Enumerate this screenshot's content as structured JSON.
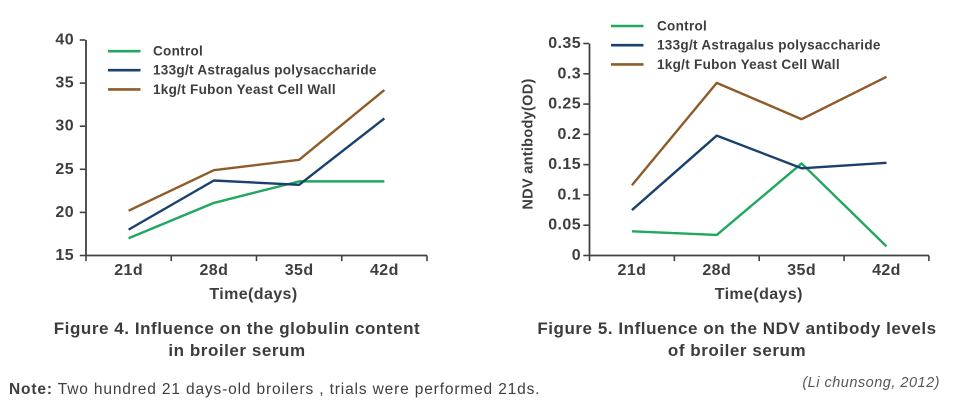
{
  "chart_data": [
    {
      "type": "line",
      "title": "",
      "categories": [
        "21d",
        "28d",
        "35d",
        "42d"
      ],
      "xlabel": "Time(days)",
      "ylabel": "",
      "ylim": [
        15,
        40
      ],
      "yticks": [
        15,
        20,
        25,
        30,
        35,
        40
      ],
      "ytick_labels": [
        "15",
        "20",
        "25",
        "30",
        "35",
        "40"
      ],
      "grid": false,
      "legend_position": "top-left-inside",
      "series": [
        {
          "name": "Control",
          "color": "#21a75f",
          "values": [
            17.0,
            21.1,
            23.6,
            23.6
          ]
        },
        {
          "name": "133g/t Astragalus polysaccharide",
          "color": "#1a416d",
          "values": [
            18.0,
            23.7,
            23.2,
            30.9
          ]
        },
        {
          "name": "1kg/t Fubon Yeast Cell Wall",
          "color": "#8d5c28",
          "values": [
            20.2,
            24.9,
            26.1,
            34.2
          ]
        }
      ],
      "caption": [
        "Figure 4. Influence on the globulin content",
        "in broiler serum"
      ]
    },
    {
      "type": "line",
      "title": "",
      "categories": [
        "21d",
        "28d",
        "35d",
        "42d"
      ],
      "xlabel": "Time(days)",
      "ylabel": "NDV antibody(OD)",
      "ylim": [
        0,
        0.35
      ],
      "yticks": [
        0,
        0.05,
        0.1,
        0.15,
        0.2,
        0.25,
        0.3,
        0.35
      ],
      "ytick_labels": [
        "0",
        "0.05",
        "0.1",
        "0.15",
        "0.2",
        "0.25",
        "0.3",
        "0.35"
      ],
      "grid": false,
      "legend_position": "top-left-inside",
      "series": [
        {
          "name": "Control",
          "color": "#21a75f",
          "values": [
            0.04,
            0.034,
            0.152,
            0.015
          ]
        },
        {
          "name": "133g/t Astragalus polysaccharide",
          "color": "#1a416d",
          "values": [
            0.075,
            0.198,
            0.144,
            0.153
          ]
        },
        {
          "name": "1kg/t Fubon Yeast Cell Wall",
          "color": "#8d5c28",
          "values": [
            0.116,
            0.285,
            0.225,
            0.295
          ]
        }
      ],
      "caption": [
        "Figure 5. Influence on the NDV antibody levels",
        "of broiler serum"
      ]
    }
  ],
  "colors": {
    "axis": "#3f4042",
    "text": "#3d3e40",
    "citation_text": "#56575b"
  },
  "note": {
    "label": "Note:",
    "text": "Two hundred 21 days-old broilers , trials were performed 21ds."
  },
  "citation": "(Li chunsong, 2012)"
}
